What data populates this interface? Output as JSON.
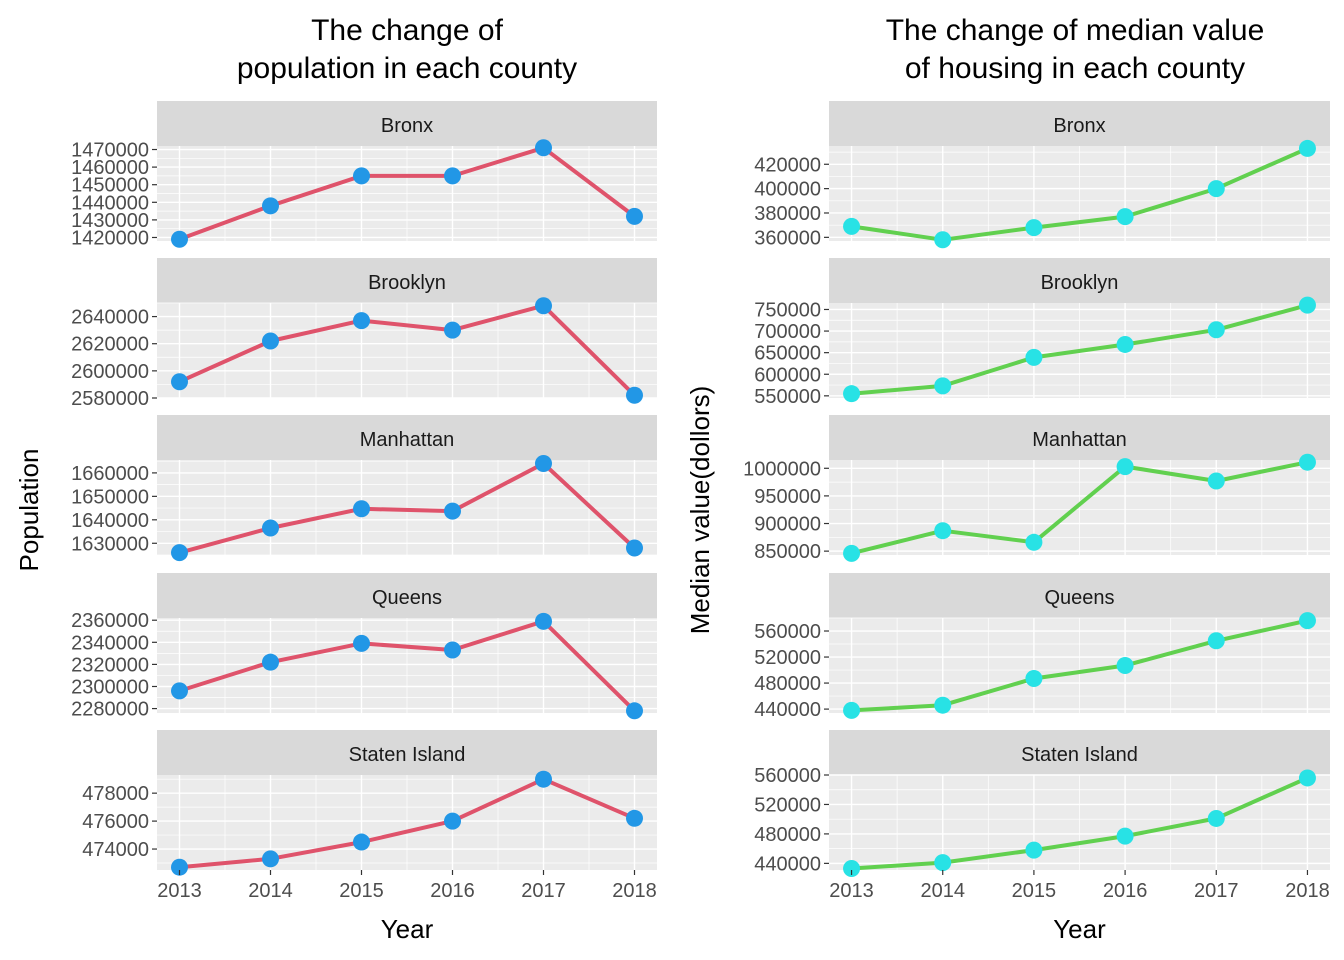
{
  "chart_data": [
    {
      "type": "line",
      "title": "The change of\npopulation in each county",
      "xlabel": "Year",
      "ylabel": "Population",
      "x": [
        2013,
        2014,
        2015,
        2016,
        2017,
        2018
      ],
      "line_color": "#DF536B",
      "point_color": "#2297E6",
      "grid": true,
      "panels": [
        {
          "name": "Bronx",
          "values": [
            1419000,
            1438000,
            1455000,
            1455000,
            1471000,
            1432000
          ],
          "ylim": [
            1418000,
            1472000
          ],
          "ticks": [
            1420000,
            1430000,
            1440000,
            1450000,
            1460000,
            1470000
          ]
        },
        {
          "name": "Brooklyn",
          "values": [
            2592000,
            2622000,
            2637000,
            2630000,
            2648000,
            2582000
          ],
          "ylim": [
            2580000,
            2650000
          ],
          "ticks": [
            2580000,
            2600000,
            2620000,
            2640000
          ]
        },
        {
          "name": "Manhattan",
          "values": [
            1626000,
            1636500,
            1644700,
            1643700,
            1664000,
            1628000
          ],
          "ylim": [
            1625000,
            1665500
          ],
          "ticks": [
            1630000,
            1640000,
            1650000,
            1660000
          ]
        },
        {
          "name": "Queens",
          "values": [
            2296000,
            2322000,
            2339000,
            2333000,
            2359000,
            2278000
          ],
          "ylim": [
            2276000,
            2362000
          ],
          "ticks": [
            2280000,
            2300000,
            2320000,
            2340000,
            2360000
          ]
        },
        {
          "name": "Staten Island",
          "values": [
            472700,
            473300,
            474500,
            476000,
            479000,
            476200
          ],
          "ylim": [
            472500,
            479300
          ],
          "ticks": [
            474000,
            476000,
            478000
          ]
        }
      ]
    },
    {
      "type": "line",
      "title": "The change of median value\nof housing in each county",
      "xlabel": "Year",
      "ylabel": "Median value(dollors)",
      "x": [
        2013,
        2014,
        2015,
        2016,
        2017,
        2018
      ],
      "line_color": "#61D04F",
      "point_color": "#28E2E5",
      "grid": true,
      "panels": [
        {
          "name": "Bronx",
          "values": [
            369000,
            358000,
            368000,
            377000,
            400000,
            433000
          ],
          "ylim": [
            357000,
            435000
          ],
          "ticks": [
            360000,
            380000,
            400000,
            420000
          ]
        },
        {
          "name": "Brooklyn",
          "values": [
            555000,
            573000,
            639000,
            669000,
            703000,
            760000
          ],
          "ylim": [
            545000,
            765000
          ],
          "ticks": [
            550000,
            600000,
            650000,
            700000,
            750000
          ]
        },
        {
          "name": "Manhattan",
          "values": [
            846000,
            887000,
            866000,
            1003000,
            977000,
            1011000
          ],
          "ylim": [
            843000,
            1015000
          ],
          "ticks": [
            850000,
            900000,
            950000,
            1000000
          ]
        },
        {
          "name": "Queens",
          "values": [
            438000,
            446000,
            487000,
            507000,
            545000,
            576000
          ],
          "ylim": [
            434000,
            580000
          ],
          "ticks": [
            440000,
            480000,
            520000,
            560000
          ]
        },
        {
          "name": "Staten Island",
          "values": [
            433000,
            441000,
            458000,
            477000,
            501000,
            556000
          ],
          "ylim": [
            431000,
            560000
          ],
          "ticks": [
            440000,
            480000,
            520000,
            560000
          ]
        }
      ]
    }
  ]
}
